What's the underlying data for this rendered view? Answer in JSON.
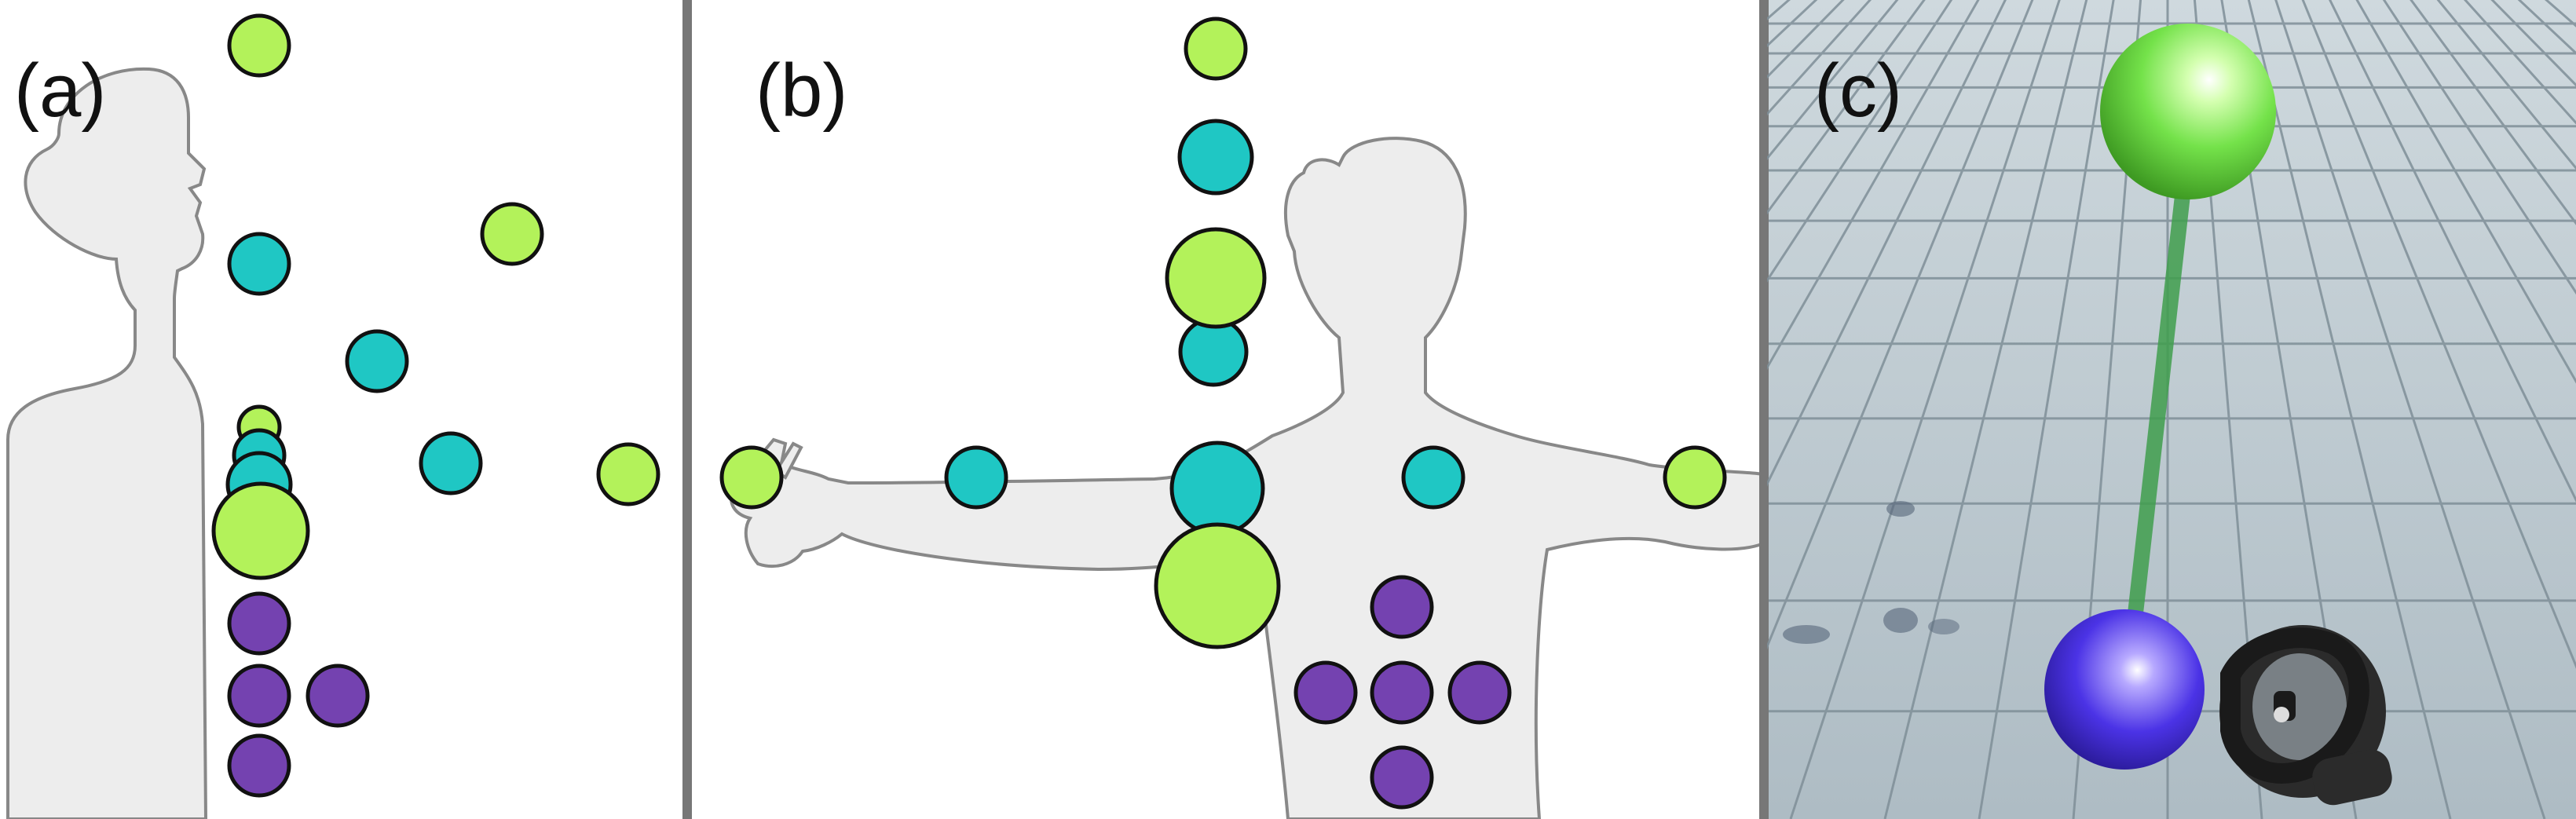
{
  "panels": [
    {
      "id": "a",
      "label": "(a)"
    },
    {
      "id": "b",
      "label": "(b)"
    },
    {
      "id": "c",
      "label": "(c)"
    }
  ],
  "colors": {
    "lime": "#b3f25a",
    "teal": "#1fc7c4",
    "purple": "#7442b0",
    "outline": "#111111",
    "silhouette_fill": "#ededed",
    "silhouette_stroke": "#888888",
    "divider": "#777777",
    "vr_floor": "#b9c7cf",
    "vr_grid": "#7f8f98",
    "vr_green_sphere": "#74e24a",
    "vr_blue_sphere": "#4b33e6",
    "vr_connector": "#3f9d4c",
    "vr_controller": "#2b2b2b"
  },
  "icons": {
    "panel_a_figure": "person-side-view",
    "panel_b_figure": "person-front-view-arm-extended",
    "panel_c_controller": "vr-controller-icon"
  }
}
